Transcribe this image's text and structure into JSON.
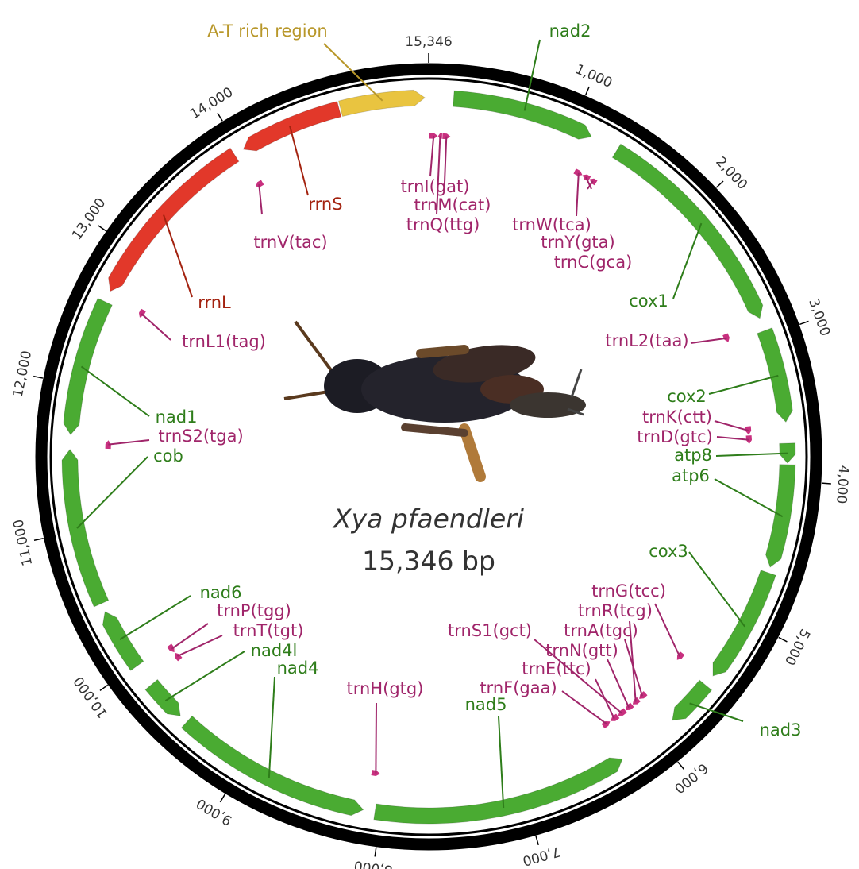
{
  "title": "Xya pfaendleri",
  "length_label": "15,346 bp",
  "genome_length": 15346,
  "colors": {
    "protein": "#4aab32",
    "rRNA": "#e2382a",
    "tRNA": "#c8307f",
    "control": "#e9c440"
  },
  "label_colors": {
    "protein": "#2e7d1a",
    "rRNA": "#a3220f",
    "tRNA": "#a0256a",
    "control": "#b8972a"
  },
  "ticks": [
    {
      "value": 15346,
      "label": "15,346"
    },
    {
      "value": 1000,
      "label": "1,000"
    },
    {
      "value": 2000,
      "label": "2,000"
    },
    {
      "value": 3000,
      "label": "3,000"
    },
    {
      "value": 4000,
      "label": "4,000"
    },
    {
      "value": 5000,
      "label": "5,000"
    },
    {
      "value": 6000,
      "label": "6,000"
    },
    {
      "value": 7000,
      "label": "7,000"
    },
    {
      "value": 8000,
      "label": "8,000"
    },
    {
      "value": 9000,
      "label": "9,000"
    },
    {
      "value": 10000,
      "label": "10,000"
    },
    {
      "value": 11000,
      "label": "11,000"
    },
    {
      "value": 12000,
      "label": "12,000"
    },
    {
      "value": 13000,
      "label": "13,000"
    },
    {
      "value": 14000,
      "label": "14,000"
    }
  ],
  "features": [
    {
      "name": "nad2",
      "type": "protein",
      "start": 170,
      "end": 1150,
      "strand": 1
    },
    {
      "name": "cox1",
      "type": "protein",
      "start": 1345,
      "end": 2870,
      "strand": 1
    },
    {
      "name": "cox2",
      "type": "protein",
      "start": 2960,
      "end": 3600,
      "strand": 1
    },
    {
      "name": "atp8",
      "type": "protein",
      "start": 3745,
      "end": 3880,
      "strand": 1
    },
    {
      "name": "atp6",
      "type": "protein",
      "start": 3890,
      "end": 4600,
      "strand": 1
    },
    {
      "name": "cox3",
      "type": "protein",
      "start": 4640,
      "end": 5440,
      "strand": 1
    },
    {
      "name": "nad3",
      "type": "protein",
      "start": 5520,
      "end": 5850,
      "strand": 1
    },
    {
      "name": "nad5",
      "type": "protein",
      "start": 6280,
      "end": 8040,
      "strand": -1
    },
    {
      "name": "nad4",
      "type": "protein",
      "start": 8120,
      "end": 9480,
      "strand": -1
    },
    {
      "name": "nad4l",
      "type": "protein",
      "start": 9540,
      "end": 9830,
      "strand": -1
    },
    {
      "name": "nad6",
      "type": "protein",
      "start": 9990,
      "end": 10420,
      "strand": 1
    },
    {
      "name": "cob",
      "type": "protein",
      "start": 10480,
      "end": 11560,
      "strand": 1
    },
    {
      "name": "nad1",
      "type": "protein",
      "start": 11660,
      "end": 12600,
      "strand": -1
    },
    {
      "name": "rrnL",
      "type": "rRNA",
      "start": 12680,
      "end": 13950,
      "strand": -1
    },
    {
      "name": "rrnS",
      "type": "rRNA",
      "start": 14020,
      "end": 14730,
      "strand": -1
    },
    {
      "name": "A-T rich region",
      "type": "control",
      "start": 14740,
      "end": 15320,
      "strand": 1
    },
    {
      "name": "trnI(gat)",
      "type": "tRNA",
      "start": 5,
      "end": 70,
      "strand": 1
    },
    {
      "name": "trnM(cat)",
      "type": "tRNA",
      "start": 105,
      "end": 165,
      "strand": 1
    },
    {
      "name": "trnQ(ttg)",
      "type": "tRNA",
      "start": 72,
      "end": 102,
      "strand": -1
    },
    {
      "name": "trnW(tca)",
      "type": "tRNA",
      "start": 1155,
      "end": 1220,
      "strand": 1
    },
    {
      "name": "trnY(gta)",
      "type": "tRNA",
      "start": 1285,
      "end": 1340,
      "strand": -1
    },
    {
      "name": "trnC(gca)",
      "type": "tRNA",
      "start": 1222,
      "end": 1282,
      "strand": -1
    },
    {
      "name": "trnL2(taa)",
      "type": "tRNA",
      "start": 2880,
      "end": 2945,
      "strand": 1
    },
    {
      "name": "trnK(ctt)",
      "type": "tRNA",
      "start": 3605,
      "end": 3670,
      "strand": 1
    },
    {
      "name": "trnD(gtc)",
      "type": "tRNA",
      "start": 3675,
      "end": 3740,
      "strand": 1
    },
    {
      "name": "trnG(tcc)",
      "type": "tRNA",
      "start": 5445,
      "end": 5510,
      "strand": 1
    },
    {
      "name": "trnR(tcg)",
      "type": "tRNA",
      "start": 5930,
      "end": 5990,
      "strand": 1
    },
    {
      "name": "trnA(tgc)",
      "type": "tRNA",
      "start": 5860,
      "end": 5925,
      "strand": 1
    },
    {
      "name": "trnS1(gct)",
      "type": "tRNA",
      "start": 6062,
      "end": 6130,
      "strand": 1
    },
    {
      "name": "trnN(gtt)",
      "type": "tRNA",
      "start": 5995,
      "end": 6060,
      "strand": 1
    },
    {
      "name": "trnE(ttc)",
      "type": "tRNA",
      "start": 6133,
      "end": 6200,
      "strand": 1
    },
    {
      "name": "trnF(gaa)",
      "type": "tRNA",
      "start": 6205,
      "end": 6270,
      "strand": -1
    },
    {
      "name": "trnH(gtg)",
      "type": "tRNA",
      "start": 8045,
      "end": 8110,
      "strand": -1
    },
    {
      "name": "trnP(tgg)",
      "type": "tRNA",
      "start": 9910,
      "end": 9975,
      "strand": -1
    },
    {
      "name": "trnT(tgt)",
      "type": "tRNA",
      "start": 9840,
      "end": 9905,
      "strand": 1
    },
    {
      "name": "trnS2(tga)",
      "type": "tRNA",
      "start": 11570,
      "end": 11635,
      "strand": 1
    },
    {
      "name": "trnL1(tag)",
      "type": "tRNA",
      "start": 12605,
      "end": 12670,
      "strand": -1
    },
    {
      "name": "trnV(tac)",
      "type": "tRNA",
      "start": 13955,
      "end": 14015,
      "strand": -1
    }
  ]
}
